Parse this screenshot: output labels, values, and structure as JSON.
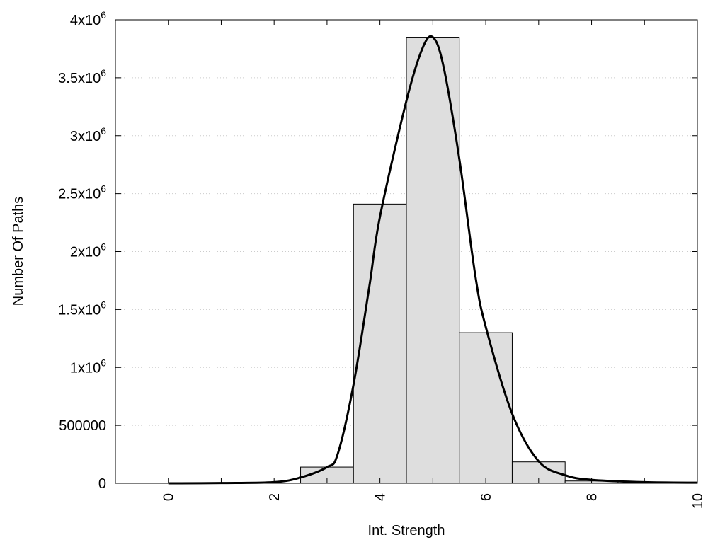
{
  "chart_data": {
    "type": "bar",
    "title": "",
    "xlabel": "Int. Strength",
    "ylabel": "Number Of Paths",
    "xlim": [
      -1,
      10
    ],
    "ylim": [
      0,
      4000000
    ],
    "grid": "horizontal dotted",
    "x_ticks": [
      0,
      2,
      4,
      6,
      8,
      10
    ],
    "x_tick_labels": [
      "0",
      "2",
      "4",
      "6",
      "8",
      "10"
    ],
    "y_ticks": [
      0,
      500000,
      1000000,
      1500000,
      2000000,
      2500000,
      3000000,
      3500000,
      4000000
    ],
    "y_tick_labels": [
      {
        "base": "0",
        "exp": ""
      },
      {
        "base": "500000",
        "exp": ""
      },
      {
        "base": "1x10",
        "exp": "6"
      },
      {
        "base": "1.5x10",
        "exp": "6"
      },
      {
        "base": "2x10",
        "exp": "6"
      },
      {
        "base": "2.5x10",
        "exp": "6"
      },
      {
        "base": "3x10",
        "exp": "6"
      },
      {
        "base": "3.5x10",
        "exp": "6"
      },
      {
        "base": "4x10",
        "exp": "6"
      }
    ],
    "bar_width": 1,
    "categories": [
      3,
      4,
      5,
      6,
      7,
      8
    ],
    "values": [
      140000,
      2410000,
      3850000,
      1300000,
      185000,
      20000
    ],
    "fit_curve": {
      "x": [
        0,
        1,
        2,
        2.5,
        3,
        3.2,
        3.5,
        3.8,
        4,
        4.5,
        4.8,
        5,
        5.2,
        5.5,
        5.8,
        6,
        6.5,
        7,
        7.5,
        8,
        9,
        10
      ],
      "y": [
        0,
        2000,
        10000,
        50000,
        140000,
        250000,
        850000,
        1700000,
        2300000,
        3300000,
        3750000,
        3850000,
        3600000,
        2800000,
        1800000,
        1350000,
        600000,
        190000,
        70000,
        30000,
        10000,
        5000
      ]
    },
    "colors": {
      "bar_fill": "#dedede",
      "bar_edge": "#000000",
      "curve": "#000000",
      "grid": "#cccccc"
    }
  }
}
